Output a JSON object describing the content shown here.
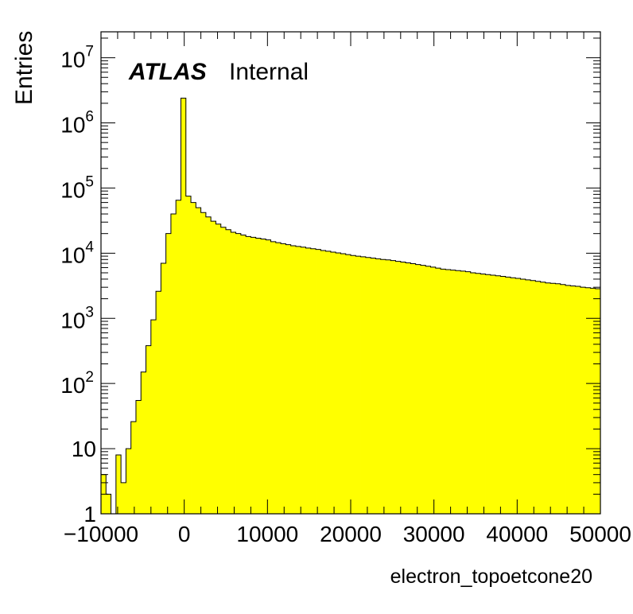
{
  "chart_data": {
    "type": "bar",
    "xlabel": "electron_topoetcone20",
    "ylabel": "Entries",
    "label": {
      "experiment": "ATLAS",
      "status": "Internal"
    },
    "xlim": [
      -10000,
      50000
    ],
    "ylim": [
      1,
      25000000
    ],
    "yscale": "log",
    "fill_color": "#ffff00",
    "line_color": "#000000",
    "x_tick_labels": [
      {
        "value": -10000,
        "text": "−10000"
      },
      {
        "value": 0,
        "text": "0"
      },
      {
        "value": 10000,
        "text": "10000"
      },
      {
        "value": 20000,
        "text": "20000"
      },
      {
        "value": 30000,
        "text": "30000"
      },
      {
        "value": 40000,
        "text": "40000"
      },
      {
        "value": 50000,
        "text": "50000"
      }
    ],
    "y_tick_labels": [
      {
        "value": 1,
        "base": "1",
        "exp": ""
      },
      {
        "value": 10,
        "base": "10",
        "exp": ""
      },
      {
        "value": 100,
        "base": "10",
        "exp": "2"
      },
      {
        "value": 1000,
        "base": "10",
        "exp": "3"
      },
      {
        "value": 10000,
        "base": "10",
        "exp": "4"
      },
      {
        "value": 100000,
        "base": "10",
        "exp": "5"
      },
      {
        "value": 1000000,
        "base": "10",
        "exp": "6"
      },
      {
        "value": 10000000,
        "base": "10",
        "exp": "7"
      }
    ],
    "bin_width": 600,
    "bin_edges_start": -10000,
    "values": [
      4,
      2,
      0,
      8,
      3,
      10,
      26,
      55,
      150,
      380,
      950,
      2600,
      7000,
      20000,
      40000,
      65000,
      2400000,
      75000,
      60000,
      50000,
      42000,
      36000,
      31000,
      28000,
      25000,
      23000,
      21000,
      20000,
      19000,
      18000,
      17500,
      17000,
      16500,
      16000,
      15000,
      14500,
      14000,
      13500,
      13000,
      12700,
      12400,
      12000,
      11700,
      11400,
      11000,
      10700,
      10400,
      10100,
      9800,
      9500,
      9200,
      9000,
      8800,
      8600,
      8400,
      8200,
      8000,
      7900,
      7700,
      7500,
      7300,
      7100,
      6900,
      6700,
      6500,
      6300,
      6100,
      5900,
      5700,
      5600,
      5500,
      5400,
      5300,
      5200,
      5000,
      4900,
      4800,
      4700,
      4600,
      4500,
      4400,
      4300,
      4200,
      4100,
      4000,
      3900,
      3800,
      3700,
      3600,
      3500,
      3450,
      3400,
      3300,
      3200,
      3150,
      3100,
      3000,
      2950,
      2900,
      2850
    ]
  }
}
